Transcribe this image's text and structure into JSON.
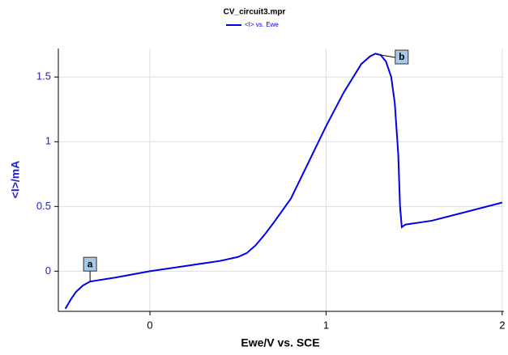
{
  "chart_data": {
    "type": "line",
    "title": "CV_circuit3.mpr",
    "xlabel": "Ewe/V vs. SCE",
    "ylabel": "<I>/mA",
    "x": [
      -0.48,
      -0.45,
      -0.42,
      -0.38,
      -0.34,
      -0.2,
      0,
      0.2,
      0.4,
      0.5,
      0.55,
      0.6,
      0.65,
      0.7,
      0.8,
      0.9,
      1.0,
      1.1,
      1.2,
      1.25,
      1.28,
      1.31,
      1.34,
      1.37,
      1.39,
      1.41,
      1.42,
      1.43,
      1.45,
      1.6,
      1.8,
      2.0
    ],
    "series": [
      {
        "name": "<I> vs. Ewe",
        "color": "#0000ee",
        "values": [
          -0.29,
          -0.22,
          -0.16,
          -0.11,
          -0.08,
          -0.05,
          0,
          0.04,
          0.08,
          0.11,
          0.14,
          0.2,
          0.28,
          0.37,
          0.56,
          0.84,
          1.12,
          1.38,
          1.6,
          1.66,
          1.68,
          1.67,
          1.62,
          1.5,
          1.3,
          0.9,
          0.5,
          0.34,
          0.36,
          0.39,
          0.46,
          0.53
        ]
      }
    ],
    "xlim": [
      -0.52,
      2.01
    ],
    "xticks": [
      0,
      1,
      2
    ],
    "ylim": [
      -0.31,
      1.72
    ],
    "yticks": [
      0,
      0.5,
      1,
      1.5
    ],
    "grid": true,
    "annotations": [
      {
        "text": "a",
        "x": -0.34,
        "y": -0.08
      },
      {
        "text": "b",
        "x": 1.31,
        "y": 1.67
      }
    ]
  }
}
